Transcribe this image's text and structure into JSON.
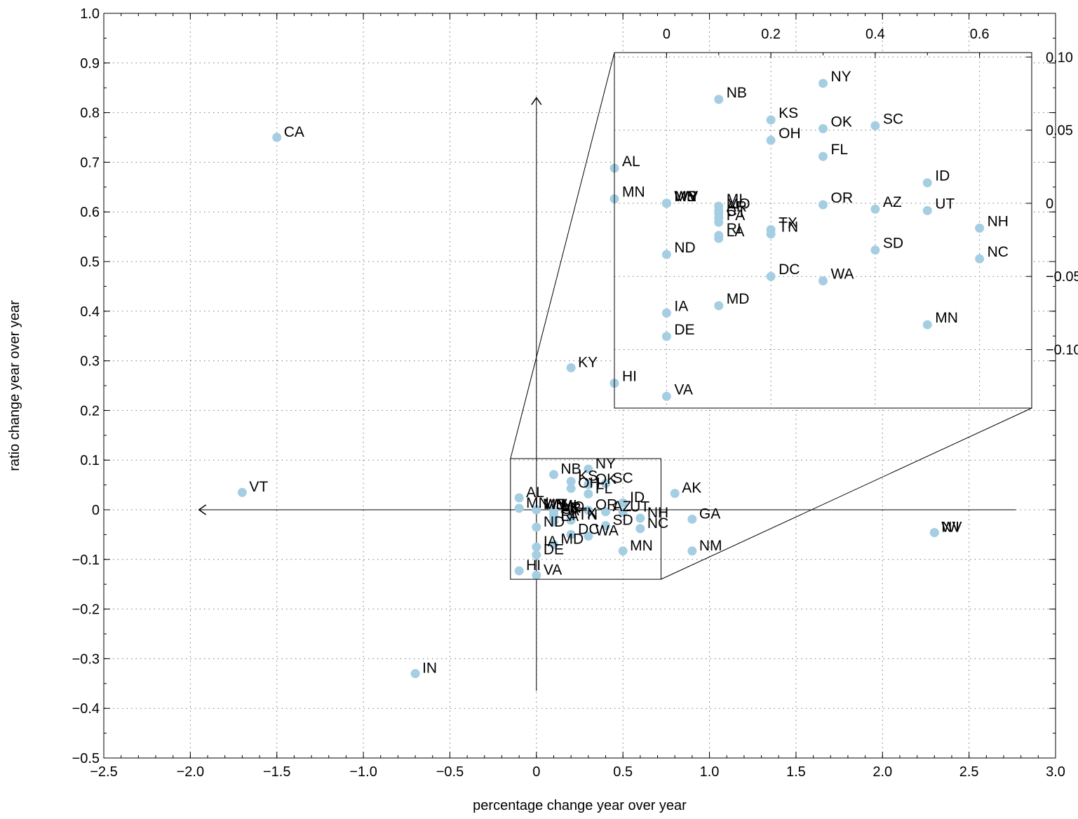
{
  "chart_data": {
    "type": "scatter",
    "xlabel": "percentage change year over year",
    "ylabel": "ratio change year over year",
    "xlim": [
      -2.5,
      3.0
    ],
    "ylim": [
      -0.5,
      1.0
    ],
    "x_ticks": [
      "−2.5",
      "−2.0",
      "−1.5",
      "−1.0",
      "−0.5",
      "0",
      "0.5",
      "1.0",
      "1.5",
      "2.0",
      "2.5",
      "3.0"
    ],
    "y_ticks": [
      "−0.5",
      "−0.4",
      "−0.3",
      "−0.2",
      "−0.1",
      "0",
      "0.1",
      "0.2",
      "0.3",
      "0.4",
      "0.5",
      "0.6",
      "0.7",
      "0.8",
      "0.9",
      "1.0"
    ],
    "grid": true,
    "marker_color": "#a6cee3",
    "points": [
      {
        "label": "CA",
        "x": -1.5,
        "y": 0.75
      },
      {
        "label": "VT",
        "x": -1.7,
        "y": 0.035
      },
      {
        "label": "IN",
        "x": -0.7,
        "y": -0.33
      },
      {
        "label": "KY",
        "x": 0.2,
        "y": 0.286
      },
      {
        "label": "AK",
        "x": 0.8,
        "y": 0.033
      },
      {
        "label": "GA",
        "x": 0.9,
        "y": -0.019
      },
      {
        "label": "NM",
        "x": 0.9,
        "y": -0.083
      },
      {
        "label": "WI",
        "x": 2.3,
        "y": -0.046
      },
      {
        "label": "NV",
        "x": 2.3,
        "y": -0.046
      },
      {
        "label": "NB",
        "x": 0.1,
        "y": 0.071
      },
      {
        "label": "NY",
        "x": 0.3,
        "y": 0.082
      },
      {
        "label": "KS",
        "x": 0.2,
        "y": 0.057
      },
      {
        "label": "OK",
        "x": 0.3,
        "y": 0.051
      },
      {
        "label": "SC",
        "x": 0.4,
        "y": 0.053
      },
      {
        "label": "OH",
        "x": 0.2,
        "y": 0.043
      },
      {
        "label": "FL",
        "x": 0.3,
        "y": 0.032
      },
      {
        "label": "AL",
        "x": -0.1,
        "y": 0.024
      },
      {
        "label": "MN",
        "x": -0.1,
        "y": 0.003
      },
      {
        "label": "MS",
        "x": 0.0,
        "y": 0.0
      },
      {
        "label": "WY",
        "x": 0.0,
        "y": 0.0
      },
      {
        "label": "WV",
        "x": 0.0,
        "y": 0.0
      },
      {
        "label": "ME",
        "x": 0.0,
        "y": 0.0
      },
      {
        "label": "MI",
        "x": 0.1,
        "y": -0.002
      },
      {
        "label": "MO",
        "x": 0.1,
        "y": -0.005
      },
      {
        "label": "AR",
        "x": 0.1,
        "y": -0.007
      },
      {
        "label": "CT",
        "x": 0.1,
        "y": -0.01
      },
      {
        "label": "PA",
        "x": 0.1,
        "y": -0.013
      },
      {
        "label": "RI",
        "x": 0.1,
        "y": -0.022
      },
      {
        "label": "LA",
        "x": 0.1,
        "y": -0.024
      },
      {
        "label": "TX",
        "x": 0.2,
        "y": -0.018
      },
      {
        "label": "TN",
        "x": 0.2,
        "y": -0.021
      },
      {
        "label": "ID",
        "x": 0.5,
        "y": 0.014
      },
      {
        "label": "OR",
        "x": 0.3,
        "y": -0.001
      },
      {
        "label": "AZ",
        "x": 0.4,
        "y": -0.004
      },
      {
        "label": "UT",
        "x": 0.5,
        "y": -0.005
      },
      {
        "label": "NH",
        "x": 0.6,
        "y": -0.017
      },
      {
        "label": "NC",
        "x": 0.6,
        "y": -0.038
      },
      {
        "label": "ND",
        "x": 0.0,
        "y": -0.035
      },
      {
        "label": "SD",
        "x": 0.4,
        "y": -0.032
      },
      {
        "label": "DC",
        "x": 0.2,
        "y": -0.05
      },
      {
        "label": "WA",
        "x": 0.3,
        "y": -0.053
      },
      {
        "label": "MD",
        "x": 0.1,
        "y": -0.07
      },
      {
        "label": "MN",
        "x": 0.5,
        "y": -0.083
      },
      {
        "label": "IA",
        "x": 0.0,
        "y": -0.075
      },
      {
        "label": "DE",
        "x": 0.0,
        "y": -0.091
      },
      {
        "label": "HI",
        "x": -0.1,
        "y": -0.123
      },
      {
        "label": "VA",
        "x": 0.0,
        "y": -0.132
      }
    ],
    "inset": {
      "xlim": [
        -0.1,
        0.7
      ],
      "ylim": [
        -0.14,
        0.103
      ],
      "x_ticks": [
        "0",
        "0.2",
        "0.4",
        "0.6"
      ],
      "y_ticks": [
        "−0.10",
        "−0.05",
        "0",
        "0.05",
        "0.10"
      ]
    }
  }
}
